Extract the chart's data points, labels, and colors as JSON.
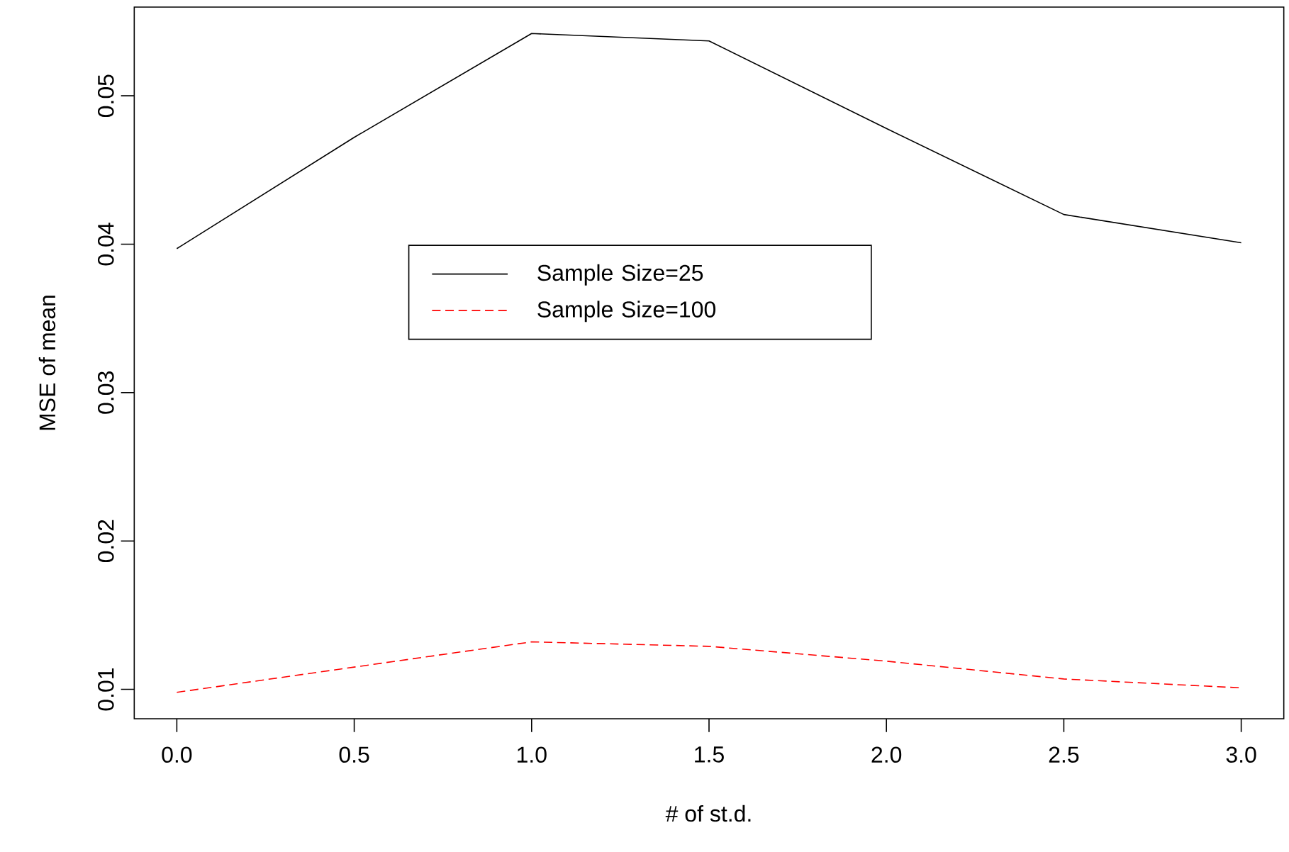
{
  "chart_data": {
    "type": "line",
    "xlabel": "# of st.d.",
    "ylabel": "MSE of mean",
    "x": [
      0,
      0.5,
      1.0,
      1.5,
      2.0,
      2.5,
      3.0
    ],
    "series": [
      {
        "name": "Sample Size=25",
        "color": "#000000",
        "line_style": "solid",
        "values": [
          0.0397,
          0.0472,
          0.0542,
          0.0537,
          0.0478,
          0.042,
          0.0401
        ]
      },
      {
        "name": "Sample Size=100",
        "color": "#ff0000",
        "line_style": "dashed",
        "values": [
          0.0098,
          0.0115,
          0.0132,
          0.0129,
          0.0119,
          0.0107,
          0.0101
        ]
      }
    ],
    "xlim": [
      -0.12,
      3.12
    ],
    "ylim": [
      0.00802,
      0.05598
    ],
    "xticks": [
      {
        "value": 0,
        "label": "0.0"
      },
      {
        "value": 0.5,
        "label": "0.5"
      },
      {
        "value": 1.0,
        "label": "1.0"
      },
      {
        "value": 1.5,
        "label": "1.5"
      },
      {
        "value": 2.0,
        "label": "2.0"
      },
      {
        "value": 2.5,
        "label": "2.5"
      },
      {
        "value": 3.0,
        "label": "3.0"
      }
    ],
    "yticks": [
      0.01,
      0.02,
      0.03,
      0.04,
      0.05
    ],
    "grid": false,
    "legend": "top"
  }
}
